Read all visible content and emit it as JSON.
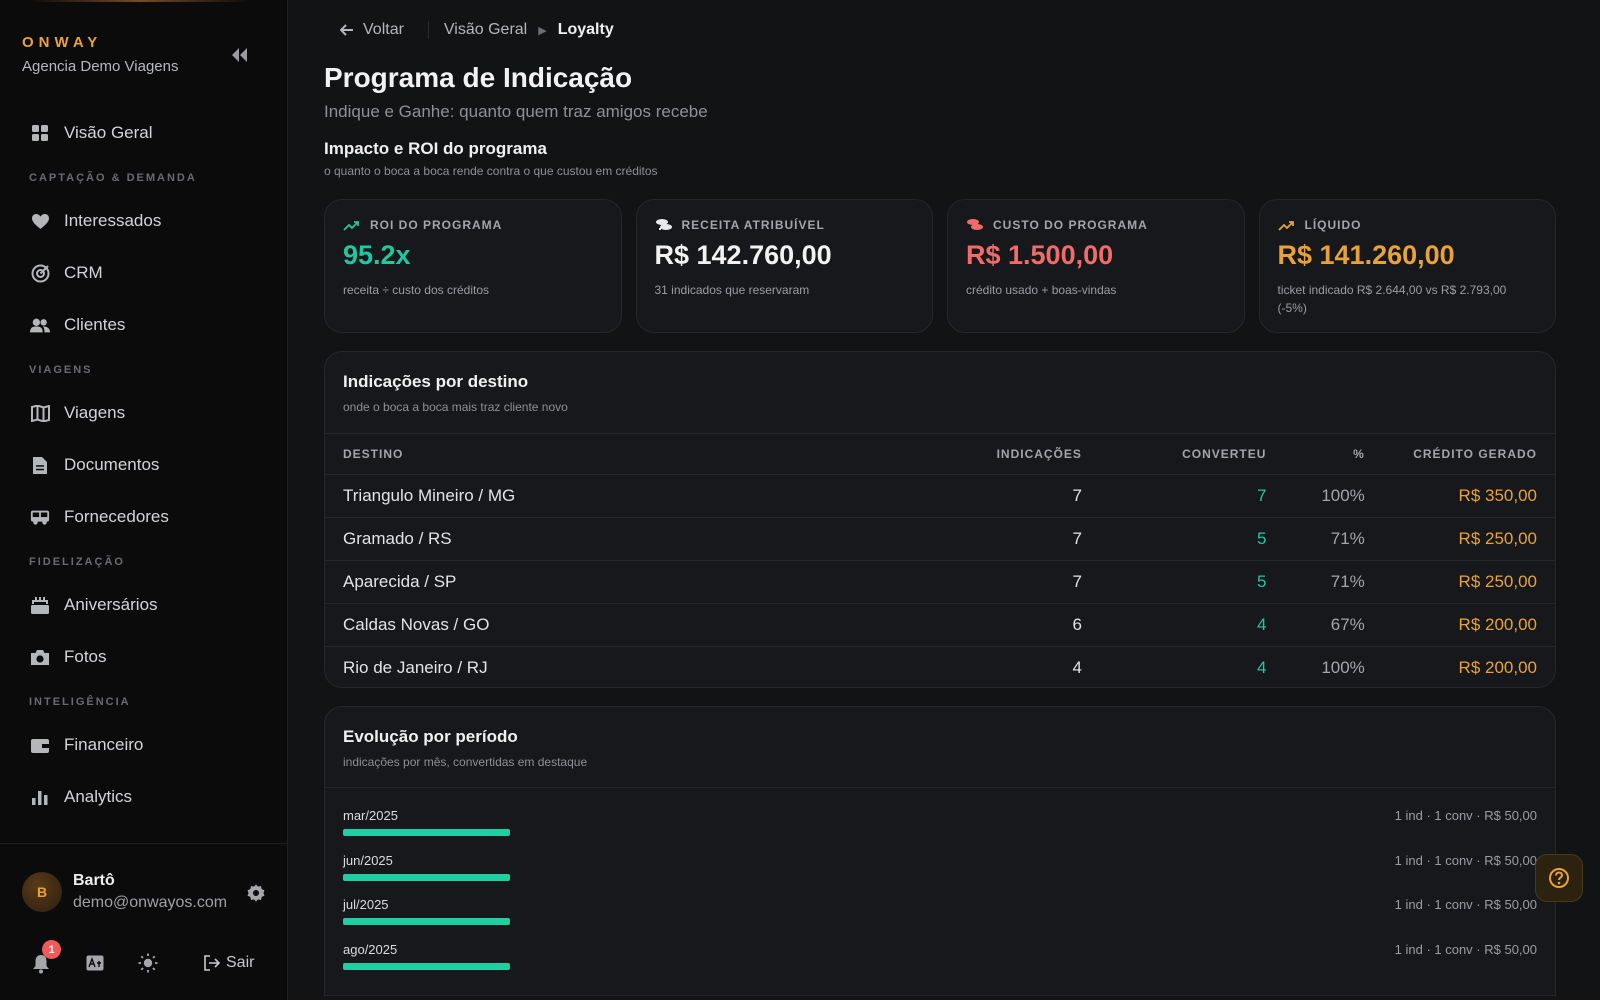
{
  "sidebar": {
    "brand": "ONWAY",
    "agency": "Agencia Demo Viagens",
    "overview": "Visão Geral",
    "sections": {
      "captacao": "CAPTAÇÃO & DEMANDA",
      "viagens": "VIAGENS",
      "fidelizacao": "FIDELIZAÇÃO",
      "inteligencia": "INTELIGÊNCIA"
    },
    "items": {
      "interessados": "Interessados",
      "crm": "CRM",
      "clientes": "Clientes",
      "viagens": "Viagens",
      "documentos": "Documentos",
      "fornecedores": "Fornecedores",
      "aniversarios": "Aniversários",
      "fotos": "Fotos",
      "financeiro": "Financeiro",
      "analytics": "Analytics"
    },
    "user": {
      "initial": "B",
      "name": "Bartô",
      "email": "demo@onwayos.com"
    },
    "notifications": "1",
    "logout": "Sair"
  },
  "breadcrumb": {
    "back": "Voltar",
    "parent": "Visão Geral",
    "current": "Loyalty"
  },
  "page": {
    "title": "Programa de Indicação",
    "subtitle": "Indique e Ganhe: quanto quem traz amigos recebe",
    "section_title": "Impacto e ROI do programa",
    "section_sub": "o quanto o boca a boca rende contra o que custou em créditos"
  },
  "kpis": {
    "roi": {
      "label": "ROI DO PROGRAMA",
      "value": "95.2x",
      "note": "receita ÷ custo dos créditos"
    },
    "receita": {
      "label": "RECEITA ATRIBUÍVEL",
      "value": "R$ 142.760,00",
      "note": "31 indicados que reservaram"
    },
    "custo": {
      "label": "CUSTO DO PROGRAMA",
      "value": "R$ 1.500,00",
      "note": "crédito usado + boas-vindas"
    },
    "liquido": {
      "label": "LÍQUIDO",
      "value": "R$ 141.260,00",
      "note": "ticket indicado R$ 2.644,00 vs R$ 2.793,00 (-5%)"
    }
  },
  "colors": {
    "accent": "#e9a23b",
    "green": "#22c7a0",
    "red": "#f26b6b",
    "bar": "#1fcfa2"
  },
  "destinos": {
    "title": "Indicações por destino",
    "subtitle": "onde o boca a boca mais traz cliente novo",
    "headers": {
      "destino": "DESTINO",
      "indicacoes": "INDICAÇÕES",
      "converteu": "CONVERTEU",
      "pct": "%",
      "credito": "CRÉDITO GERADO"
    },
    "rows": [
      {
        "destino": "Triangulo Mineiro / MG",
        "indicacoes": "7",
        "converteu": "7",
        "pct": "100%",
        "credito": "R$ 350,00"
      },
      {
        "destino": "Gramado / RS",
        "indicacoes": "7",
        "converteu": "5",
        "pct": "71%",
        "credito": "R$ 250,00"
      },
      {
        "destino": "Aparecida / SP",
        "indicacoes": "7",
        "converteu": "5",
        "pct": "71%",
        "credito": "R$ 250,00"
      },
      {
        "destino": "Caldas Novas / GO",
        "indicacoes": "6",
        "converteu": "4",
        "pct": "67%",
        "credito": "R$ 200,00"
      },
      {
        "destino": "Rio de Janeiro / RJ",
        "indicacoes": "4",
        "converteu": "4",
        "pct": "100%",
        "credito": "R$ 200,00"
      }
    ]
  },
  "evolucao": {
    "title": "Evolução por período",
    "subtitle": "indicações por mês, convertidas em destaque",
    "periods": [
      {
        "label": "mar/2025",
        "info": "1 ind · 1 conv · R$ 50,00",
        "fill": 0.14
      },
      {
        "label": "jun/2025",
        "info": "1 ind · 1 conv · R$ 50,00",
        "fill": 0.14
      },
      {
        "label": "jul/2025",
        "info": "1 ind · 1 conv · R$ 50,00",
        "fill": 0.14
      },
      {
        "label": "ago/2025",
        "info": "1 ind · 1 conv · R$ 50,00",
        "fill": 0.14
      }
    ]
  }
}
